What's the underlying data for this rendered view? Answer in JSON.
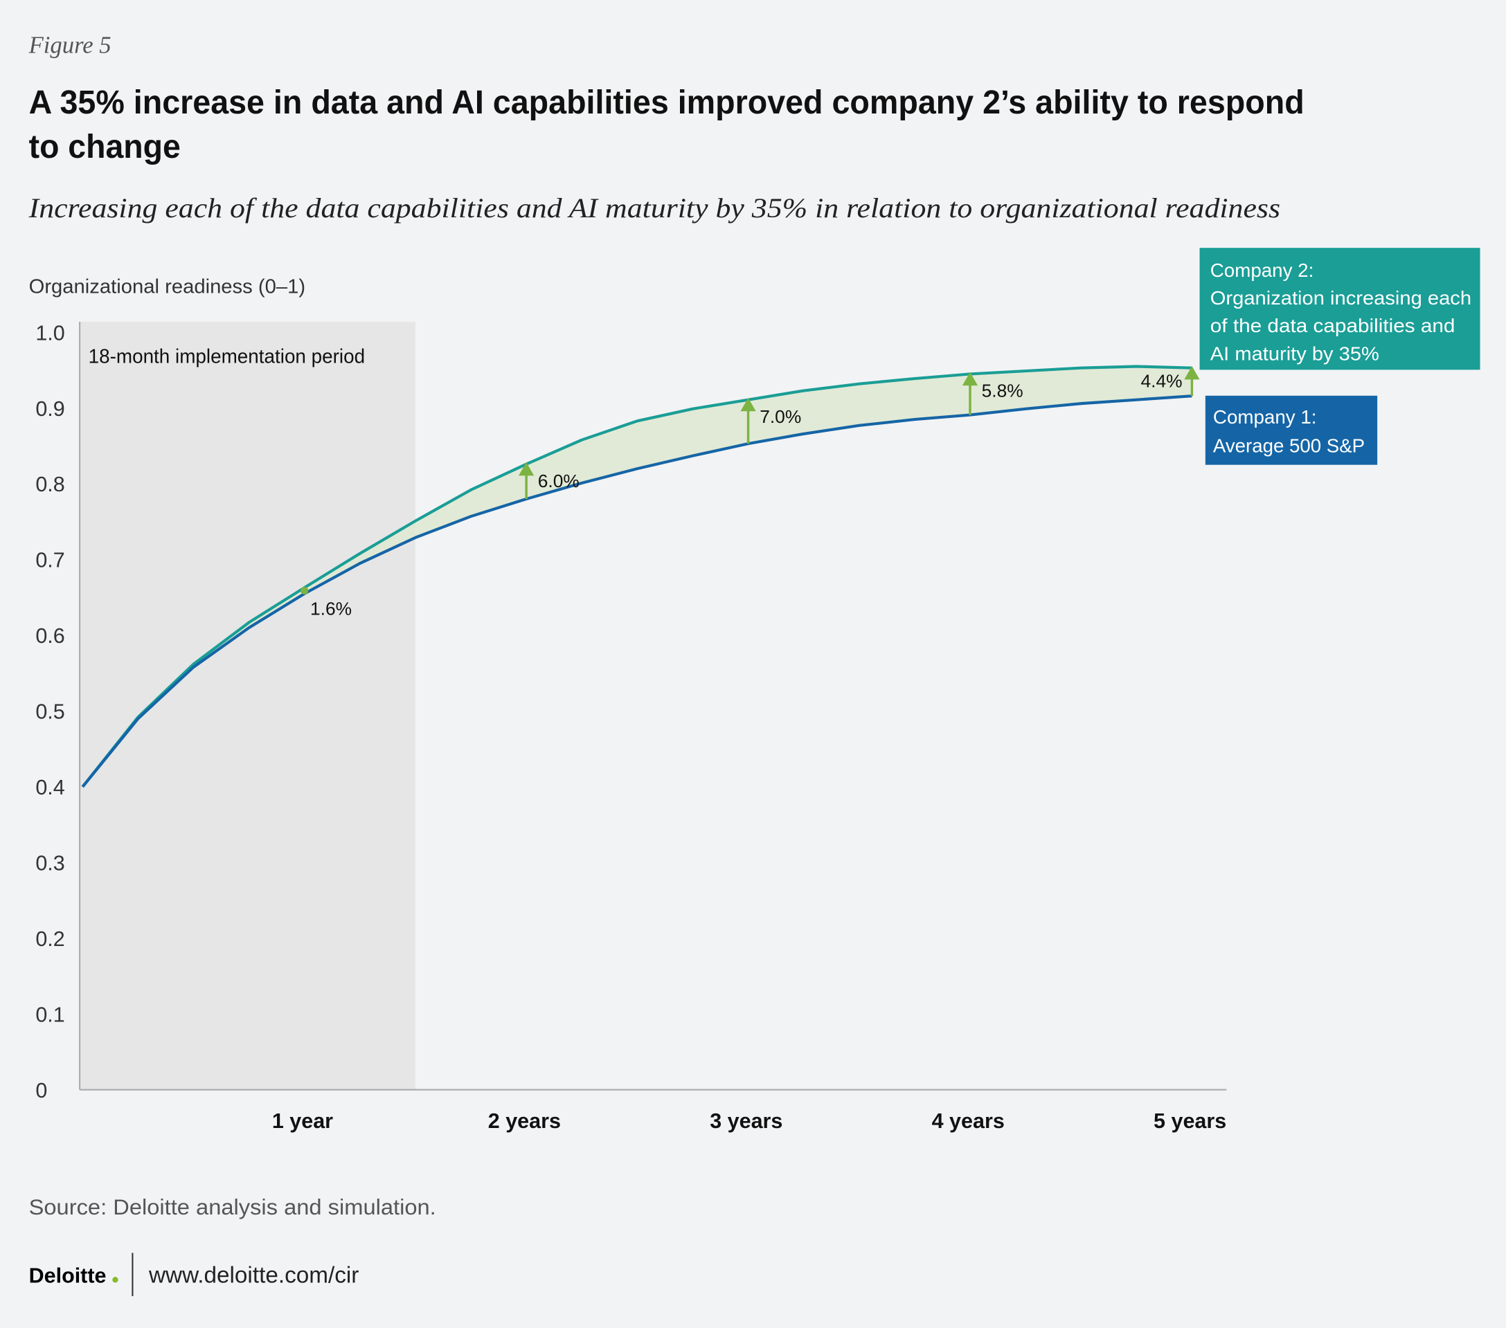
{
  "figure_label": "Figure 5",
  "title_line1": "A 35% increase in data and AI capabilities improved company 2’s ability to respond",
  "title_line2": "to change",
  "subtitle": "Increasing each of the data capabilities and AI maturity by 35% in relation to organizational readiness",
  "source": "Source: Deloitte analysis and simulation.",
  "footer": {
    "logo": "Deloitte",
    "logo_dot": ".",
    "url": "www.deloitte.com/cir"
  },
  "chart_data": {
    "type": "area",
    "ylabel": "Organizational readiness (0–1)",
    "ylim": [
      0,
      1.0
    ],
    "yticks": [
      "0",
      "0.1",
      "0.2",
      "0.3",
      "0.4",
      "0.5",
      "0.6",
      "0.7",
      "0.8",
      "0.9",
      "1.0"
    ],
    "xticks": [
      {
        "value": 1,
        "label": "1 year"
      },
      {
        "value": 2,
        "label": "2 years"
      },
      {
        "value": 3,
        "label": "3 years"
      },
      {
        "value": 4,
        "label": "4 years"
      },
      {
        "value": 5,
        "label": "5 years"
      }
    ],
    "xlim": [
      0,
      5
    ],
    "shaded_period": {
      "from": 0,
      "to": 1.5,
      "label": "18-month implementation period"
    },
    "x": [
      0,
      0.25,
      0.5,
      0.75,
      1,
      1.25,
      1.5,
      1.75,
      2,
      2.25,
      2.5,
      2.75,
      3,
      3.25,
      3.5,
      3.75,
      4,
      4.25,
      4.5,
      4.75,
      5
    ],
    "series": [
      {
        "name": "Company 1: Average 500 S&P",
        "color": "#1565a6",
        "values": [
          0.4,
          0.49,
          0.558,
          0.61,
          0.655,
          0.695,
          0.729,
          0.757,
          0.78,
          0.801,
          0.82,
          0.837,
          0.853,
          0.866,
          0.877,
          0.885,
          0.891,
          0.899,
          0.906,
          0.911,
          0.916
        ]
      },
      {
        "name": "Company 2: Organization increasing each of the data capabilities and AI maturity by 35%",
        "color": "#1a9e96",
        "values": [
          0.4,
          0.492,
          0.562,
          0.617,
          0.663,
          0.708,
          0.751,
          0.792,
          0.826,
          0.858,
          0.883,
          0.899,
          0.911,
          0.923,
          0.932,
          0.939,
          0.945,
          0.949,
          0.953,
          0.955,
          0.953
        ]
      }
    ],
    "legend": [
      {
        "lines": [
          "Company 2:",
          "Organization increasing each",
          "of the data capabilities and",
          "AI maturity by 35%"
        ],
        "color": "#1a9e96"
      },
      {
        "lines": [
          "Company 1:",
          "Average 500 S&P"
        ],
        "color": "#1565a6"
      }
    ],
    "fill_color": "#dfe9d3",
    "annotation_color": "#7cb342",
    "annotations": [
      {
        "x": 1,
        "label": "1.6%"
      },
      {
        "x": 2,
        "label": "6.0%"
      },
      {
        "x": 3,
        "label": "7.0%"
      },
      {
        "x": 4,
        "label": "5.8%"
      },
      {
        "x": 5,
        "label": "4.4%"
      }
    ]
  }
}
